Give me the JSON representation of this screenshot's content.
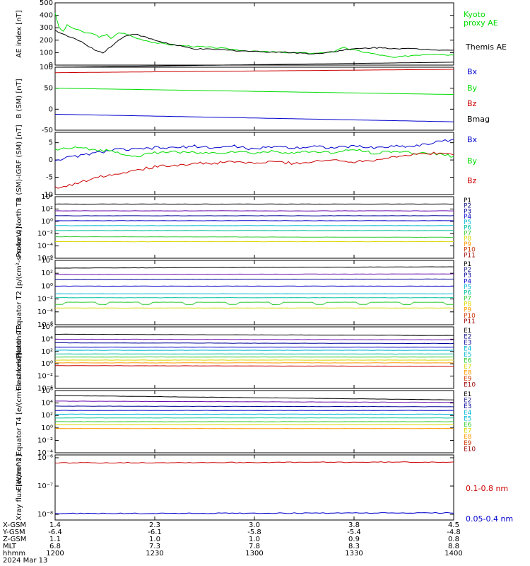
{
  "colors": {
    "black": "#000000",
    "green": "#00dd00",
    "blue": "#0000cc",
    "red": "#cc0000",
    "darkblue": "#000099",
    "navy": "#1a1a8c",
    "purple": "#6a0dad",
    "cyan": "#00b7d4",
    "teal": "#00c0a0",
    "lgreen": "#33cc33",
    "yellow": "#d8d800",
    "orange": "#ff9900",
    "brick": "#cc3300",
    "maroon": "#990000"
  },
  "chart_data": [
    {
      "type": "line",
      "ylabel": "AE index [nT]",
      "ylim": [
        0,
        500
      ],
      "yticks": [
        "0",
        "100",
        "200",
        "300",
        "400",
        "500"
      ],
      "legend": [
        {
          "text": "Kyoto",
          "color": "green"
        },
        {
          "text": "proxy AE",
          "color": "green"
        },
        {
          "text": "Themis AE",
          "color": "black"
        }
      ],
      "series": [
        {
          "name": "Kyoto proxy AE",
          "color": "green",
          "x": [
            1200,
            1202,
            1204,
            1206,
            1210,
            1215,
            1220,
            1222,
            1226,
            1228,
            1232,
            1236,
            1240,
            1250,
            1260,
            1270,
            1280,
            1300,
            1320,
            1330,
            1335,
            1340,
            1345,
            1350,
            1360,
            1370,
            1380,
            1390,
            1400
          ],
          "values": [
            420,
            300,
            270,
            320,
            290,
            260,
            250,
            220,
            250,
            210,
            260,
            250,
            220,
            180,
            160,
            150,
            140,
            110,
            100,
            95,
            100,
            110,
            140,
            120,
            90,
            60,
            80,
            90,
            80
          ]
        },
        {
          "name": "Themis AE",
          "color": "black",
          "x": [
            1200,
            1205,
            1210,
            1215,
            1220,
            1224,
            1228,
            1232,
            1236,
            1240,
            1250,
            1260,
            1270,
            1280,
            1300,
            1320,
            1330,
            1340,
            1350,
            1360,
            1370,
            1380,
            1390,
            1400
          ],
          "values": [
            280,
            240,
            210,
            170,
            120,
            100,
            150,
            200,
            240,
            250,
            200,
            160,
            130,
            125,
            110,
            100,
            90,
            110,
            130,
            140,
            135,
            130,
            125,
            120
          ]
        }
      ]
    },
    {
      "type": "line",
      "ylabel": "B (SM) [nT]",
      "ylim": [
        -50,
        100
      ],
      "yticks": [
        "-50",
        "0",
        "50",
        "100"
      ],
      "legend": [
        {
          "text": "Bx",
          "color": "blue"
        },
        {
          "text": "By",
          "color": "green"
        },
        {
          "text": "Bz",
          "color": "red"
        },
        {
          "text": "Bmag",
          "color": "black"
        }
      ],
      "series": [
        {
          "name": "Bmag",
          "color": "black",
          "x": [
            1200,
            1400
          ],
          "values": [
            100,
            112
          ]
        },
        {
          "name": "Bz",
          "color": "red",
          "x": [
            1200,
            1400
          ],
          "values": [
            87,
            95
          ]
        },
        {
          "name": "By",
          "color": "green",
          "x": [
            1200,
            1400
          ],
          "values": [
            50,
            35
          ]
        },
        {
          "name": "Bx",
          "color": "blue",
          "x": [
            1200,
            1400
          ],
          "values": [
            -12,
            -30
          ]
        }
      ]
    },
    {
      "type": "line",
      "ylabel": "B (SM)-IGRF (SM) [nT]",
      "ylim": [
        -10,
        8
      ],
      "yticks": [
        "-10",
        "-5",
        "0",
        "5"
      ],
      "legend": [
        {
          "text": "Bx",
          "color": "blue"
        },
        {
          "text": "By",
          "color": "green"
        },
        {
          "text": "Bz",
          "color": "red"
        }
      ],
      "series": [
        {
          "name": "Bx",
          "color": "blue",
          "x": [
            1200,
            1210,
            1220,
            1230,
            1240,
            1250,
            1260,
            1270,
            1280,
            1290,
            1300,
            1310,
            1320,
            1330,
            1340,
            1350,
            1360,
            1370,
            1380,
            1390,
            1400
          ],
          "values": [
            0,
            1,
            2,
            3,
            3,
            3.5,
            3.5,
            4,
            3.5,
            4,
            3,
            4,
            3.5,
            4,
            3.5,
            4,
            3.5,
            4,
            4,
            5,
            6
          ]
        },
        {
          "name": "By",
          "color": "green",
          "x": [
            1200,
            1210,
            1220,
            1230,
            1240,
            1250,
            1260,
            1270,
            1280,
            1290,
            1300,
            1310,
            1320,
            1330,
            1340,
            1350,
            1360,
            1370,
            1380,
            1390,
            1400
          ],
          "values": [
            3,
            3.5,
            3,
            2.5,
            1,
            2,
            2.5,
            2,
            2,
            2.5,
            2,
            2.5,
            2,
            2.5,
            2,
            3,
            2,
            2.5,
            2,
            2,
            1
          ]
        },
        {
          "name": "Bz",
          "color": "red",
          "x": [
            1200,
            1210,
            1220,
            1230,
            1240,
            1250,
            1260,
            1270,
            1280,
            1290,
            1300,
            1310,
            1320,
            1330,
            1340,
            1350,
            1360,
            1370,
            1380,
            1390,
            1400
          ],
          "values": [
            -8,
            -7,
            -5,
            -4,
            -3,
            -2,
            -1.5,
            -1,
            -1,
            -0.5,
            -1,
            -0.5,
            -1,
            -0.5,
            0,
            -0.5,
            0,
            1,
            1.5,
            2,
            1.5
          ]
        }
      ]
    },
    {
      "type": "line",
      "scale": "log",
      "ylabel": "Protons North T1",
      "yticks": [
        "10⁻⁶",
        "10⁻⁴",
        "10⁻²",
        "10⁰",
        "10²",
        "10⁴"
      ],
      "legend": [
        {
          "text": "P1",
          "color": "black"
        },
        {
          "text": "P2",
          "color": "navy"
        },
        {
          "text": "P3",
          "color": "darkblue"
        },
        {
          "text": "P4",
          "color": "blue"
        },
        {
          "text": "P5",
          "color": "cyan"
        },
        {
          "text": "P6",
          "color": "teal"
        },
        {
          "text": "P7",
          "color": "lgreen"
        },
        {
          "text": "P8",
          "color": "yellow"
        },
        {
          "text": "P9",
          "color": "orange"
        },
        {
          "text": "P10",
          "color": "brick"
        },
        {
          "text": "P11",
          "color": "maroon"
        }
      ],
      "series": [
        {
          "name": "P1",
          "color": "black",
          "log_values": [
            2.8,
            2.8
          ]
        },
        {
          "name": "P2",
          "color": "purple",
          "log_values": [
            1.7,
            1.7
          ]
        },
        {
          "name": "P3",
          "color": "darkblue",
          "log_values": [
            0.9,
            0.9
          ]
        },
        {
          "name": "P4",
          "color": "blue",
          "log_values": [
            0.1,
            0.1
          ]
        },
        {
          "name": "P5",
          "color": "cyan",
          "log_values": [
            -0.7,
            -0.7
          ]
        },
        {
          "name": "P6",
          "color": "teal",
          "log_values": [
            -1.5,
            -1.5
          ]
        },
        {
          "name": "P7",
          "color": "lgreen",
          "log_values": [
            -2.5,
            -2.6
          ]
        },
        {
          "name": "P8",
          "color": "yellow",
          "log_values": [
            -3.3,
            -3.3
          ]
        }
      ]
    },
    {
      "type": "line",
      "scale": "log",
      "ylabel": "Protons Equator T2 [p/(cm²-s-sr-keV)]",
      "yticks": [
        "10⁻⁶",
        "10⁻⁴",
        "10⁻²",
        "10⁰",
        "10²",
        "10⁴"
      ],
      "legend": [
        {
          "text": "P1",
          "color": "black"
        },
        {
          "text": "P2",
          "color": "navy"
        },
        {
          "text": "P3",
          "color": "darkblue"
        },
        {
          "text": "P4",
          "color": "blue"
        },
        {
          "text": "P5",
          "color": "cyan"
        },
        {
          "text": "P6",
          "color": "teal"
        },
        {
          "text": "P7",
          "color": "lgreen"
        },
        {
          "text": "P8",
          "color": "yellow"
        },
        {
          "text": "P9",
          "color": "orange"
        },
        {
          "text": "P10",
          "color": "brick"
        },
        {
          "text": "P11",
          "color": "maroon"
        }
      ],
      "series": [
        {
          "name": "P1",
          "color": "black",
          "log_values": [
            2.8,
            3.0
          ]
        },
        {
          "name": "P2",
          "color": "purple",
          "log_values": [
            1.8,
            1.9
          ]
        },
        {
          "name": "P3",
          "color": "darkblue",
          "log_values": [
            1.0,
            1.1
          ]
        },
        {
          "name": "P4",
          "color": "blue",
          "log_values": [
            0,
            0
          ]
        },
        {
          "name": "P5",
          "color": "cyan",
          "log_values": [
            -1.2,
            -1.2
          ]
        },
        {
          "name": "P6",
          "color": "teal",
          "log_values": [
            -1.8,
            -1.8
          ]
        },
        {
          "name": "P7",
          "color": "lgreen",
          "log_values": [
            -2.5,
            -2.5
          ]
        },
        {
          "name": "P8",
          "color": "yellow",
          "log_values": [
            -3.4,
            -3.4
          ]
        }
      ]
    },
    {
      "type": "line",
      "scale": "log",
      "ylabel": "Electrons North T3",
      "yticks": [
        "10⁻⁴",
        "10⁻²",
        "10⁰",
        "10²",
        "10⁴",
        "10⁶"
      ],
      "legend": [
        {
          "text": "E1",
          "color": "black"
        },
        {
          "text": "E2",
          "color": "navy"
        },
        {
          "text": "E3",
          "color": "darkblue"
        },
        {
          "text": "E4",
          "color": "cyan"
        },
        {
          "text": "E5",
          "color": "cyan"
        },
        {
          "text": "E6",
          "color": "lgreen"
        },
        {
          "text": "E7",
          "color": "yellow"
        },
        {
          "text": "E8",
          "color": "orange"
        },
        {
          "text": "E9",
          "color": "brick"
        },
        {
          "text": "E10",
          "color": "maroon"
        }
      ],
      "series": [
        {
          "name": "E1",
          "color": "black",
          "log_values": [
            4.8,
            4.6
          ]
        },
        {
          "name": "E2",
          "color": "purple",
          "log_values": [
            4.0,
            3.9
          ]
        },
        {
          "name": "E3",
          "color": "darkblue",
          "log_values": [
            3.4,
            3.3
          ]
        },
        {
          "name": "E4",
          "color": "blue",
          "log_values": [
            2.7,
            2.7
          ]
        },
        {
          "name": "E5",
          "color": "cyan",
          "log_values": [
            2.2,
            2.2
          ]
        },
        {
          "name": "E6",
          "color": "teal",
          "log_values": [
            1.6,
            1.6
          ]
        },
        {
          "name": "E7",
          "color": "lgreen",
          "log_values": [
            1.1,
            1.1
          ]
        },
        {
          "name": "E8",
          "color": "yellow",
          "log_values": [
            0.6,
            0.6
          ]
        },
        {
          "name": "E9",
          "color": "orange",
          "log_values": [
            0.15,
            0.15
          ]
        },
        {
          "name": "E10",
          "color": "red",
          "log_values": [
            -0.3,
            -0.4
          ]
        }
      ]
    },
    {
      "type": "line",
      "scale": "log",
      "ylabel": "Electrons Equator T4 [e/(cm²-s-sr-keV)]",
      "yticks": [
        "10⁻⁴",
        "10⁻²",
        "10⁰",
        "10²",
        "10⁴",
        "10⁶"
      ],
      "legend": [
        {
          "text": "E1",
          "color": "black"
        },
        {
          "text": "E2",
          "color": "navy"
        },
        {
          "text": "E3",
          "color": "darkblue"
        },
        {
          "text": "E4",
          "color": "cyan"
        },
        {
          "text": "E5",
          "color": "cyan"
        },
        {
          "text": "E6",
          "color": "lgreen"
        },
        {
          "text": "E7",
          "color": "yellow"
        },
        {
          "text": "E8",
          "color": "orange"
        },
        {
          "text": "E9",
          "color": "brick"
        },
        {
          "text": "E10",
          "color": "maroon"
        }
      ],
      "series": [
        {
          "name": "E1",
          "color": "black",
          "log_values": [
            5.2,
            4.5
          ]
        },
        {
          "name": "E2",
          "color": "purple",
          "log_values": [
            4.3,
            4.1
          ]
        },
        {
          "name": "E3",
          "color": "darkblue",
          "log_values": [
            3.5,
            3.4
          ]
        },
        {
          "name": "E4",
          "color": "blue",
          "log_values": [
            2.8,
            2.8
          ]
        },
        {
          "name": "E5",
          "color": "cyan",
          "log_values": [
            2.2,
            2.2
          ]
        },
        {
          "name": "E6",
          "color": "teal",
          "log_values": [
            1.6,
            1.6
          ]
        },
        {
          "name": "E7",
          "color": "lgreen",
          "log_values": [
            1.0,
            1.0
          ]
        },
        {
          "name": "E8",
          "color": "yellow",
          "log_values": [
            0.5,
            0.5
          ]
        },
        {
          "name": "E9",
          "color": "orange",
          "log_values": [
            -0.1,
            -0.1
          ]
        }
      ]
    },
    {
      "type": "line",
      "scale": "log",
      "ylabel": "Xray flux [W/m^2]",
      "yticks": [
        "10⁻⁸",
        "10⁻⁷",
        "10⁻⁶"
      ],
      "legend": [
        {
          "text": "0.1-0.8 nm",
          "color": "red"
        },
        {
          "text": "0.05-0.4 nm",
          "color": "blue"
        }
      ],
      "series": [
        {
          "name": "0.1-0.8 nm",
          "color": "red",
          "log_values": [
            -6.18,
            -6.15
          ]
        },
        {
          "name": "0.05-0.4 nm",
          "color": "blue",
          "log_values": [
            -7.97,
            -7.95
          ]
        }
      ]
    }
  ],
  "xaxis": {
    "row_labels": [
      "X-GSM",
      "Y-GSM",
      "Z-GSM",
      "MLT",
      "hhmm",
      "2024 Mar 13"
    ],
    "columns": [
      [
        "1.4",
        "-6.4",
        "1.1",
        "6.8",
        "1200"
      ],
      [
        "2.3",
        "-6.1",
        "1.0",
        "7.3",
        "1230"
      ],
      [
        "3.0",
        "-5.8",
        "1.0",
        "7.8",
        "1300"
      ],
      [
        "3.8",
        "-5.4",
        "0.9",
        "8.3",
        "1330"
      ],
      [
        "4.5",
        "-4.8",
        "0.8",
        "8.8",
        "1400"
      ]
    ]
  }
}
